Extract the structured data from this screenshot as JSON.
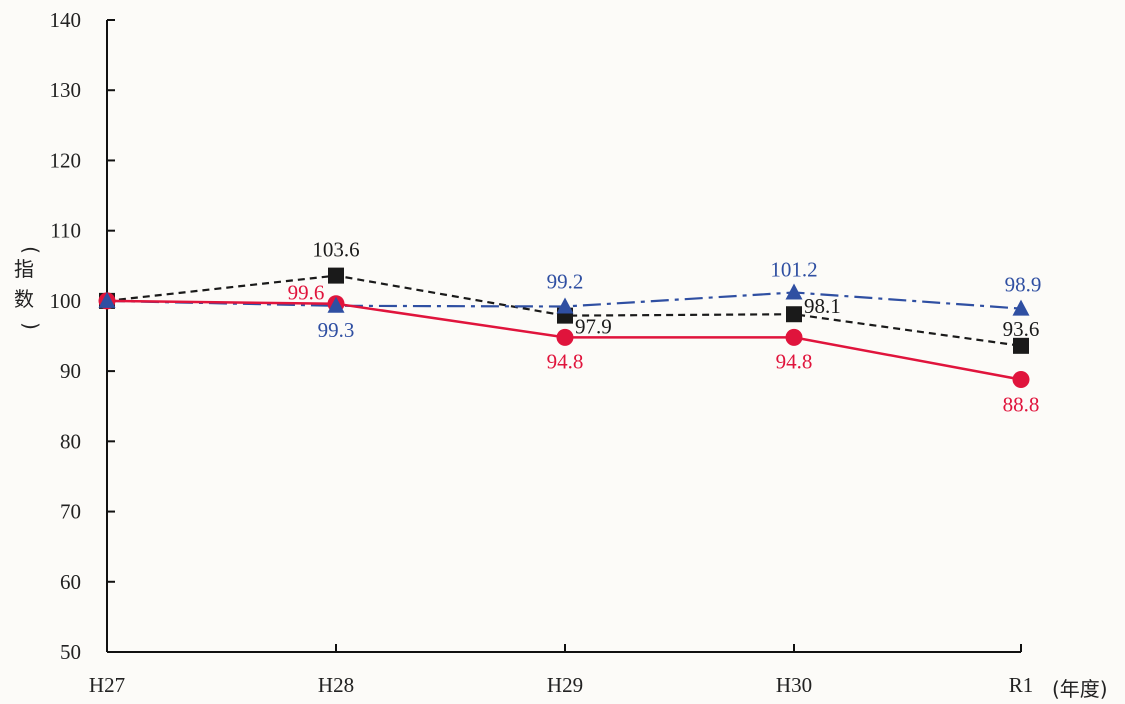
{
  "chart_data": {
    "type": "line",
    "categories": [
      "H27",
      "H28",
      "H29",
      "H30",
      "R1"
    ],
    "ylim": [
      50,
      140
    ],
    "yticks": [
      50,
      60,
      70,
      80,
      90,
      100,
      110,
      120,
      130,
      140
    ],
    "ylabel_chars": [
      "指",
      "数"
    ],
    "ylabel_paren_open": "(",
    "ylabel_paren_close": ")",
    "xlabel": "(年度)",
    "grid": false,
    "legend": "none",
    "series": [
      {
        "values": [
          100,
          103.6,
          97.9,
          98.1,
          93.6
        ],
        "labels": [
          "",
          "103.6",
          "97.9",
          "98.1",
          "93.6"
        ],
        "color": "#1a1a1a",
        "line_style": "dashed",
        "marker": "square"
      },
      {
        "values": [
          100,
          99.3,
          99.2,
          101.2,
          98.9
        ],
        "labels": [
          "",
          "99.3",
          "99.2",
          "101.2",
          "98.9"
        ],
        "color": "#2f4fa2",
        "line_style": "dash-dot",
        "marker": "triangle"
      },
      {
        "values": [
          100,
          99.6,
          94.8,
          94.8,
          88.8
        ],
        "labels": [
          "",
          "99.6",
          "94.8",
          "94.8",
          "88.8"
        ],
        "color": "#e0143c",
        "line_style": "solid",
        "marker": "circle"
      }
    ]
  }
}
